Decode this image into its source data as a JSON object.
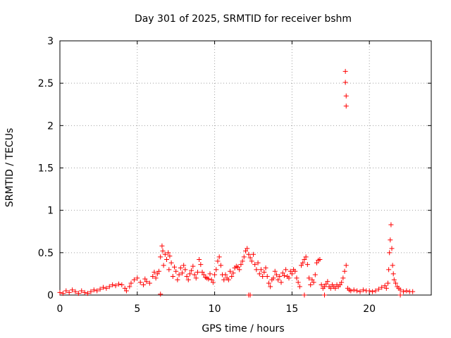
{
  "chart_data": {
    "type": "scatter",
    "title": "Day 301 of 2025, SRMTID for receiver bshm",
    "xlabel": "GPS time / hours",
    "ylabel": "SRMTID / TECUs",
    "xlim": [
      0,
      24
    ],
    "ylim": [
      0,
      3
    ],
    "xticks": [
      0,
      5,
      10,
      15,
      20
    ],
    "xtick_labels": [
      "0",
      "5",
      "10",
      "15",
      "20"
    ],
    "yticks": [
      0,
      0.5,
      1,
      1.5,
      2,
      2.5,
      3
    ],
    "ytick_labels": [
      "0",
      "0.5",
      "1",
      "1.5",
      "2",
      "2.5",
      "3"
    ],
    "grid": true,
    "marker": "+",
    "color": "#ff0000",
    "series": [
      {
        "name": "SRMTID",
        "points": [
          [
            0.0,
            0.03
          ],
          [
            0.2,
            0.02
          ],
          [
            0.4,
            0.05
          ],
          [
            0.6,
            0.03
          ],
          [
            0.8,
            0.06
          ],
          [
            1.0,
            0.04
          ],
          [
            1.2,
            0.02
          ],
          [
            1.4,
            0.05
          ],
          [
            1.6,
            0.03
          ],
          [
            1.8,
            0.02
          ],
          [
            2.0,
            0.04
          ],
          [
            2.2,
            0.06
          ],
          [
            2.4,
            0.05
          ],
          [
            2.6,
            0.07
          ],
          [
            2.8,
            0.09
          ],
          [
            3.0,
            0.08
          ],
          [
            3.2,
            0.1
          ],
          [
            3.4,
            0.12
          ],
          [
            3.6,
            0.11
          ],
          [
            3.8,
            0.13
          ],
          [
            4.0,
            0.12
          ],
          [
            4.2,
            0.08
          ],
          [
            4.3,
            0.05
          ],
          [
            4.5,
            0.1
          ],
          [
            4.6,
            0.14
          ],
          [
            4.8,
            0.18
          ],
          [
            5.0,
            0.2
          ],
          [
            5.2,
            0.15
          ],
          [
            5.4,
            0.12
          ],
          [
            5.5,
            0.19
          ],
          [
            5.6,
            0.16
          ],
          [
            5.8,
            0.14
          ],
          [
            6.0,
            0.22
          ],
          [
            6.1,
            0.27
          ],
          [
            6.2,
            0.2
          ],
          [
            6.3,
            0.25
          ],
          [
            6.4,
            0.28
          ],
          [
            6.5,
            0.45
          ],
          [
            6.6,
            0.58
          ],
          [
            6.65,
            0.52
          ],
          [
            6.7,
            0.35
          ],
          [
            6.8,
            0.48
          ],
          [
            6.9,
            0.42
          ],
          [
            7.0,
            0.5
          ],
          [
            7.05,
            0.3
          ],
          [
            7.1,
            0.46
          ],
          [
            7.2,
            0.38
          ],
          [
            7.3,
            0.22
          ],
          [
            7.4,
            0.33
          ],
          [
            7.5,
            0.28
          ],
          [
            7.6,
            0.18
          ],
          [
            7.7,
            0.24
          ],
          [
            7.8,
            0.32
          ],
          [
            7.9,
            0.26
          ],
          [
            8.0,
            0.35
          ],
          [
            8.1,
            0.3
          ],
          [
            8.2,
            0.22
          ],
          [
            8.3,
            0.18
          ],
          [
            8.4,
            0.25
          ],
          [
            8.5,
            0.29
          ],
          [
            8.6,
            0.34
          ],
          [
            8.7,
            0.24
          ],
          [
            8.8,
            0.2
          ],
          [
            8.9,
            0.27
          ],
          [
            9.0,
            0.42
          ],
          [
            9.1,
            0.36
          ],
          [
            9.2,
            0.27
          ],
          [
            9.3,
            0.24
          ],
          [
            9.4,
            0.21
          ],
          [
            9.5,
            0.2
          ],
          [
            9.6,
            0.19
          ],
          [
            9.7,
            0.25
          ],
          [
            9.8,
            0.18
          ],
          [
            9.9,
            0.15
          ],
          [
            10.0,
            0.24
          ],
          [
            10.1,
            0.3
          ],
          [
            10.2,
            0.4
          ],
          [
            10.3,
            0.45
          ],
          [
            10.4,
            0.35
          ],
          [
            10.5,
            0.24
          ],
          [
            10.6,
            0.18
          ],
          [
            10.7,
            0.24
          ],
          [
            10.8,
            0.2
          ],
          [
            10.9,
            0.18
          ],
          [
            11.0,
            0.28
          ],
          [
            11.1,
            0.22
          ],
          [
            11.2,
            0.26
          ],
          [
            11.3,
            0.32
          ],
          [
            11.4,
            0.34
          ],
          [
            11.5,
            0.33
          ],
          [
            11.6,
            0.3
          ],
          [
            11.7,
            0.36
          ],
          [
            11.8,
            0.4
          ],
          [
            11.9,
            0.45
          ],
          [
            12.0,
            0.52
          ],
          [
            12.1,
            0.55
          ],
          [
            12.2,
            0.48
          ],
          [
            12.3,
            0.44
          ],
          [
            12.4,
            0.4
          ],
          [
            12.5,
            0.48
          ],
          [
            12.6,
            0.36
          ],
          [
            12.7,
            0.3
          ],
          [
            12.8,
            0.38
          ],
          [
            12.9,
            0.25
          ],
          [
            13.0,
            0.3
          ],
          [
            13.1,
            0.22
          ],
          [
            13.2,
            0.27
          ],
          [
            13.3,
            0.32
          ],
          [
            13.4,
            0.22
          ],
          [
            13.5,
            0.14
          ],
          [
            13.6,
            0.1
          ],
          [
            13.7,
            0.18
          ],
          [
            13.8,
            0.2
          ],
          [
            13.9,
            0.28
          ],
          [
            14.0,
            0.24
          ],
          [
            14.1,
            0.18
          ],
          [
            14.2,
            0.22
          ],
          [
            14.3,
            0.15
          ],
          [
            14.4,
            0.26
          ],
          [
            14.5,
            0.23
          ],
          [
            14.6,
            0.3
          ],
          [
            14.7,
            0.22
          ],
          [
            14.8,
            0.2
          ],
          [
            14.9,
            0.28
          ],
          [
            15.0,
            0.25
          ],
          [
            15.1,
            0.3
          ],
          [
            15.2,
            0.28
          ],
          [
            15.3,
            0.2
          ],
          [
            15.4,
            0.15
          ],
          [
            15.5,
            0.1
          ],
          [
            15.6,
            0.35
          ],
          [
            15.7,
            0.38
          ],
          [
            15.8,
            0.42
          ],
          [
            15.9,
            0.45
          ],
          [
            16.0,
            0.36
          ],
          [
            16.1,
            0.2
          ],
          [
            16.2,
            0.12
          ],
          [
            16.3,
            0.18
          ],
          [
            16.4,
            0.15
          ],
          [
            16.5,
            0.24
          ],
          [
            16.6,
            0.38
          ],
          [
            16.7,
            0.41
          ],
          [
            16.8,
            0.42
          ],
          [
            16.9,
            0.12
          ],
          [
            17.0,
            0.08
          ],
          [
            17.1,
            0.1
          ],
          [
            17.2,
            0.13
          ],
          [
            17.3,
            0.16
          ],
          [
            17.4,
            0.1
          ],
          [
            17.5,
            0.08
          ],
          [
            17.6,
            0.12
          ],
          [
            17.7,
            0.1
          ],
          [
            17.8,
            0.08
          ],
          [
            17.9,
            0.12
          ],
          [
            18.0,
            0.1
          ],
          [
            18.1,
            0.12
          ],
          [
            18.2,
            0.15
          ],
          [
            18.3,
            0.2
          ],
          [
            18.4,
            0.28
          ],
          [
            18.5,
            0.35
          ],
          [
            18.6,
            0.08
          ],
          [
            18.7,
            0.06
          ],
          [
            18.8,
            0.05
          ],
          [
            19.0,
            0.06
          ],
          [
            19.2,
            0.05
          ],
          [
            19.4,
            0.04
          ],
          [
            19.6,
            0.06
          ],
          [
            19.8,
            0.05
          ],
          [
            20.0,
            0.05
          ],
          [
            20.2,
            0.04
          ],
          [
            20.4,
            0.05
          ],
          [
            20.6,
            0.07
          ],
          [
            20.8,
            0.09
          ],
          [
            21.0,
            0.11
          ],
          [
            21.1,
            0.08
          ],
          [
            21.2,
            0.14
          ],
          [
            21.25,
            0.3
          ],
          [
            21.3,
            0.5
          ],
          [
            21.35,
            0.65
          ],
          [
            21.4,
            0.83
          ],
          [
            21.45,
            0.55
          ],
          [
            21.5,
            0.35
          ],
          [
            21.55,
            0.25
          ],
          [
            21.6,
            0.18
          ],
          [
            21.7,
            0.14
          ],
          [
            21.8,
            0.1
          ],
          [
            21.9,
            0.08
          ],
          [
            22.0,
            0.06
          ],
          [
            22.2,
            0.04
          ],
          [
            22.4,
            0.05
          ],
          [
            22.6,
            0.04
          ],
          [
            22.8,
            0.04
          ],
          [
            18.45,
            2.64
          ],
          [
            18.45,
            2.51
          ],
          [
            18.5,
            2.35
          ],
          [
            18.5,
            2.23
          ],
          [
            6.5,
            0.01
          ],
          [
            12.2,
            0.0
          ],
          [
            12.3,
            0.0
          ],
          [
            15.8,
            0.0
          ],
          [
            17.1,
            0.0
          ],
          [
            22.0,
            0.0
          ]
        ]
      }
    ]
  }
}
